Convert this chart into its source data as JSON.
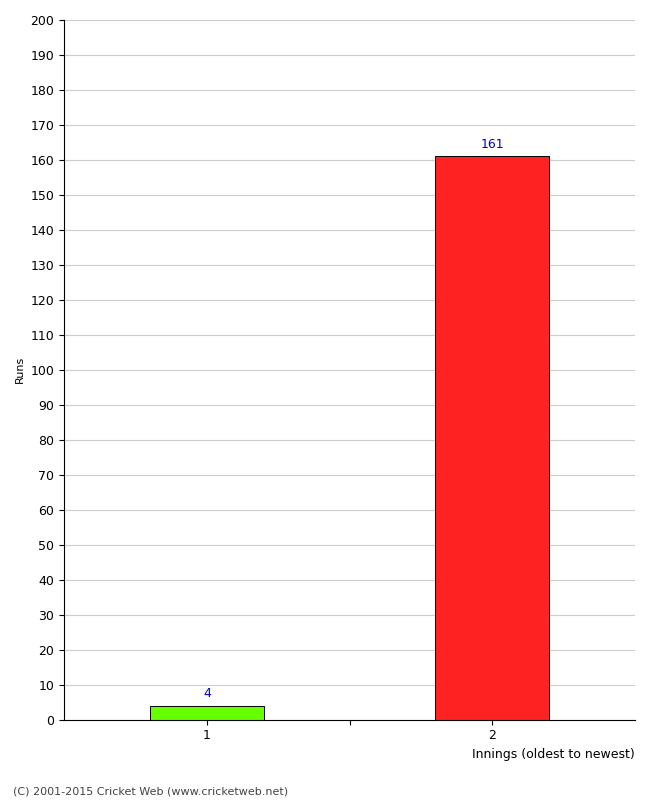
{
  "categories": [
    "1",
    "2"
  ],
  "values": [
    4,
    161
  ],
  "bar_colors": [
    "#66ff00",
    "#ff2222"
  ],
  "bar_edge_colors": [
    "#000000",
    "#000000"
  ],
  "value_labels": [
    "4",
    "161"
  ],
  "value_label_color": "#0000cc",
  "ylabel": "Runs",
  "xlabel": "Innings (oldest to newest)",
  "ylim": [
    0,
    200
  ],
  "yticks": [
    0,
    10,
    20,
    30,
    40,
    50,
    60,
    70,
    80,
    90,
    100,
    110,
    120,
    130,
    140,
    150,
    160,
    170,
    180,
    190,
    200
  ],
  "grid_color": "#cccccc",
  "background_color": "#ffffff",
  "footer_text": "(C) 2001-2015 Cricket Web (www.cricketweb.net)",
  "footer_color": "#444444",
  "value_label_fontsize": 9,
  "axis_label_fontsize": 9,
  "tick_label_fontsize": 9,
  "ylabel_fontsize": 8,
  "footer_fontsize": 8,
  "bar_positions": [
    1,
    3
  ],
  "xlim": [
    0,
    4
  ],
  "bar_width": 0.8
}
